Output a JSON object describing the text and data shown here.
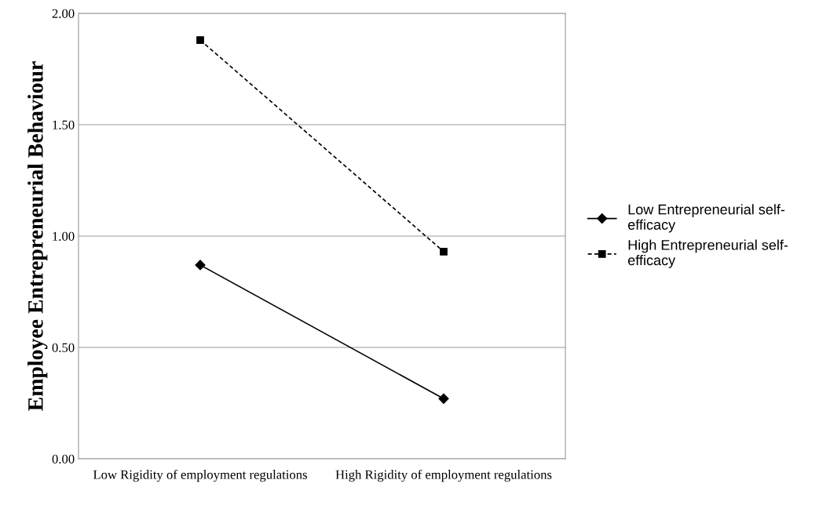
{
  "chart_data": {
    "type": "line",
    "ylabel": "Employee Entrepreneurial Behaviour",
    "categories": [
      "Low Rigidity of employment regulations",
      "High Rigidity of employment regulations"
    ],
    "series": [
      {
        "name": "Low Entrepreneurial self-efficacy",
        "color": "#000000",
        "values": [
          0.87,
          0.27
        ],
        "marker": "diamond",
        "line_style": "solid"
      },
      {
        "name": "High Entrepreneurial self-efficacy",
        "color": "#000000",
        "values": [
          1.88,
          0.93
        ],
        "marker": "square",
        "line_style": "dashed"
      }
    ],
    "ylim": [
      0,
      2
    ],
    "yticks": [
      {
        "value": 0,
        "label": "0.00"
      },
      {
        "value": 0.5,
        "label": "0.50"
      },
      {
        "value": 1,
        "label": "1.00"
      },
      {
        "value": 1.5,
        "label": "1.50"
      },
      {
        "value": 2,
        "label": "2.00"
      }
    ],
    "grid": "y",
    "legend": "right"
  }
}
